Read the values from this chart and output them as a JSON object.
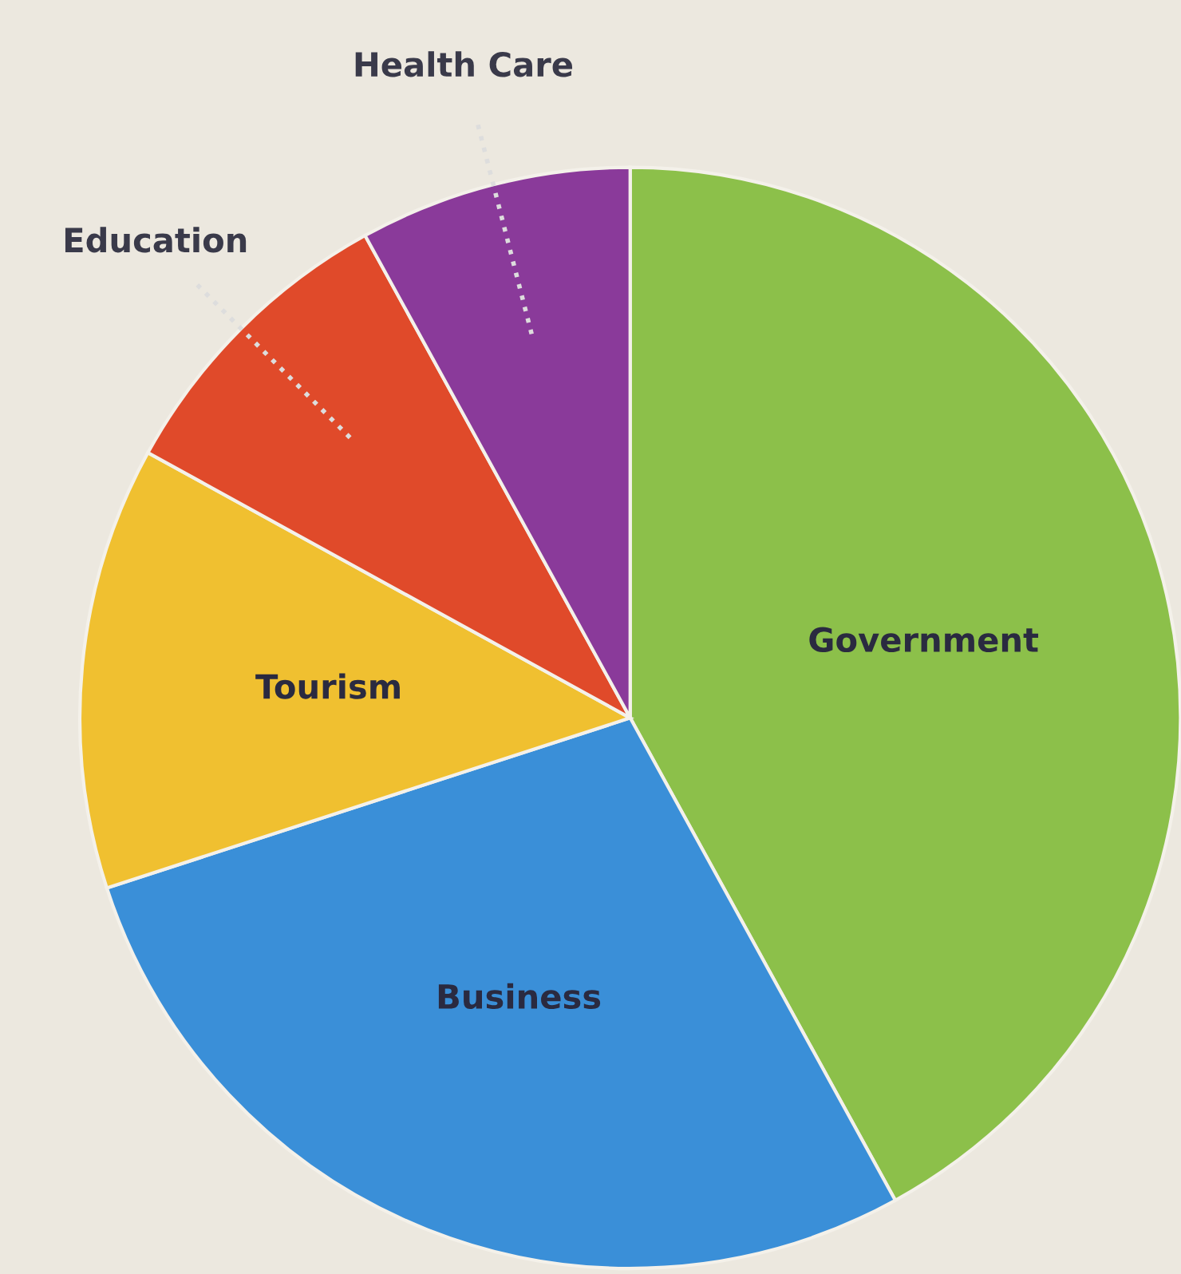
{
  "chart_data": {
    "type": "pie",
    "categories": [
      "Government",
      "Business",
      "Tourism",
      "Education",
      "Health Care"
    ],
    "values": [
      42,
      28,
      13,
      9,
      8
    ],
    "colors": [
      "#8cc04a",
      "#3a8fd8",
      "#f0c030",
      "#e04a2a",
      "#8a3a9a"
    ]
  }
}
